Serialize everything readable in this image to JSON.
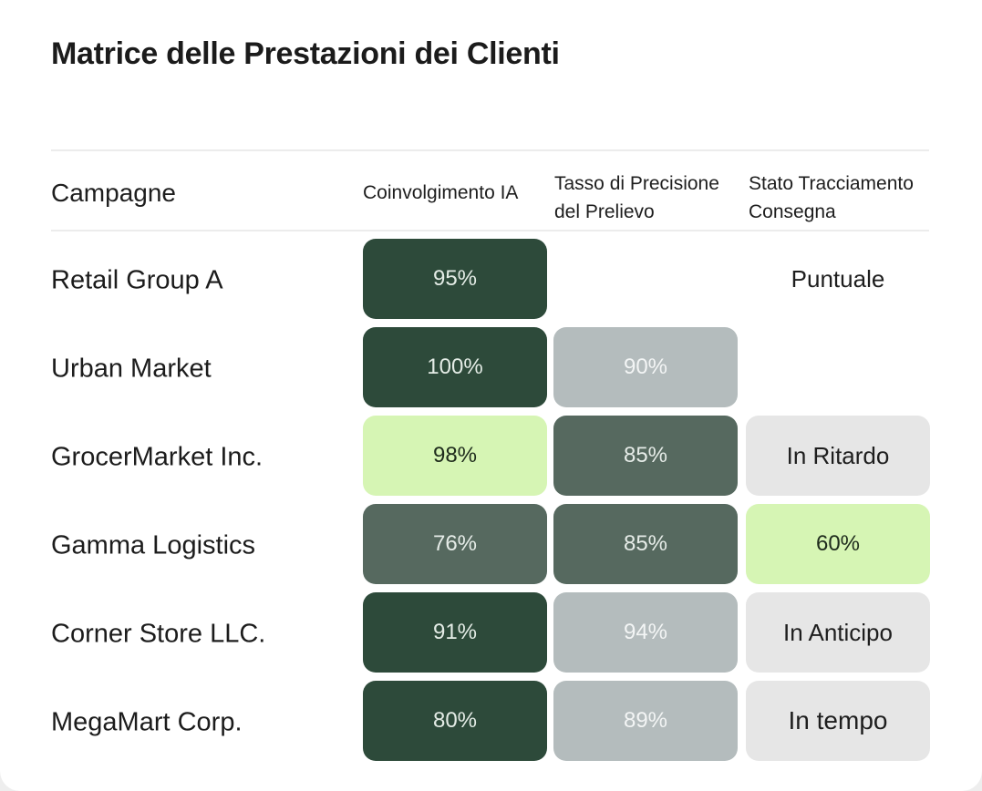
{
  "title": "Matrice delle Prestazioni dei Clienti",
  "columns": {
    "campaigns": "Campagne",
    "engagement": "Coinvolgimento IA",
    "precision": [
      "Tasso di Precisione",
      "del Prelievo"
    ],
    "tracking": [
      "Stato Tracciamento",
      "Consegna"
    ]
  },
  "chart_data": {
    "type": "table",
    "title": "Matrice delle Prestazioni dei Clienti",
    "columns": [
      "Campagne",
      "Coinvolgimento IA",
      "Tasso di Precisione del Prelievo",
      "Stato Tracciamento Consegna"
    ],
    "rows": [
      {
        "name": "Retail Group A",
        "engagement": "95%",
        "precision": "",
        "tracking": "Puntuale"
      },
      {
        "name": "Urban Market",
        "engagement": "100%",
        "precision": "90%",
        "tracking": ""
      },
      {
        "name": "GrocerMarket Inc.",
        "engagement": "98%",
        "precision": "85%",
        "tracking": "In Ritardo"
      },
      {
        "name": "Gamma Logistics",
        "engagement": "76%",
        "precision": "85%",
        "tracking": "60%"
      },
      {
        "name": "Corner Store LLC.",
        "engagement": "91%",
        "precision": "94%",
        "tracking": "In Anticipo"
      },
      {
        "name": "MegaMart Corp.",
        "engagement": "80%",
        "precision": "89%",
        "tracking": "In tempo"
      }
    ],
    "cell_colors": {
      "dark": "#2d4a3a",
      "mid": "#56695f",
      "light": "#b4bcbd",
      "lime": "#d6f5b4",
      "pale": "#e6e6e6"
    }
  }
}
